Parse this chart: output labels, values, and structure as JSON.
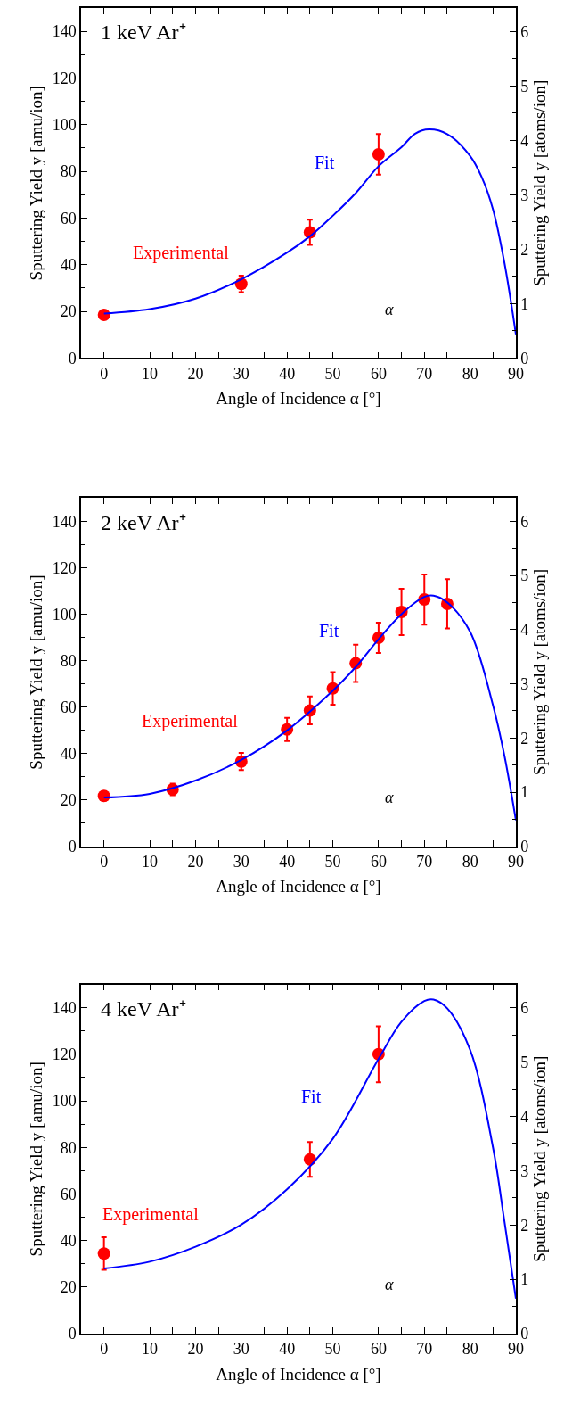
{
  "chart_data": [
    {
      "type": "scatter",
      "title": "1 keV Ar⁺",
      "xlabel": "Angle of Incidence α [°]",
      "ylabel": "Sputtering Yield y [amu/ion]",
      "y2label": "Sputtering Yield y [atoms/ion]",
      "xlim": [
        -5,
        90
      ],
      "xticks": [
        0,
        10,
        20,
        30,
        40,
        50,
        60,
        70,
        80,
        90
      ],
      "ylim": [
        0,
        150
      ],
      "yticks": [
        0,
        20,
        40,
        60,
        80,
        100,
        120,
        140
      ],
      "y2lim": [
        0,
        6.43
      ],
      "y2ticks": [
        0,
        1,
        2,
        3,
        4,
        5,
        6
      ],
      "annotations": [
        "α"
      ],
      "series": [
        {
          "name": "Experimental",
          "type": "scatter",
          "color": "#ff0000",
          "marker": "circle",
          "x": [
            0,
            30,
            45,
            60
          ],
          "values": [
            18.5,
            31.8,
            53.9,
            87.3
          ],
          "errors": [
            null,
            3.5,
            5.4,
            8.7
          ]
        },
        {
          "name": "Fit",
          "type": "line",
          "color": "#0000ff",
          "marker": "none",
          "line_style": "solid",
          "x": [
            0,
            10,
            20,
            30,
            40,
            45,
            50,
            55,
            60,
            65,
            68,
            71,
            75,
            80,
            82.5,
            85,
            87.5,
            90
          ],
          "values": [
            19.1,
            21,
            25.5,
            33.8,
            45.2,
            52.2,
            61,
            70.7,
            82.2,
            90.4,
            96.2,
            98,
            96,
            86.6,
            77.7,
            63.7,
            40.8,
            10.2
          ]
        }
      ]
    },
    {
      "type": "scatter",
      "title": "2 keV Ar⁺",
      "xlabel": "Angle of Incidence α [°]",
      "ylabel": "Sputtering Yield y [amu/ion]",
      "y2label": "Sputtering Yield y [atoms/ion]",
      "xlim": [
        -5,
        90
      ],
      "xticks": [
        0,
        10,
        20,
        30,
        40,
        50,
        60,
        70,
        80,
        90
      ],
      "ylim": [
        0,
        150
      ],
      "yticks": [
        0,
        20,
        40,
        60,
        80,
        100,
        120,
        140
      ],
      "y2lim": [
        0,
        6.43
      ],
      "y2ticks": [
        0,
        1,
        2,
        3,
        4,
        5,
        6
      ],
      "annotations": [
        "α"
      ],
      "series": [
        {
          "name": "Experimental",
          "type": "scatter",
          "color": "#ff0000",
          "marker": "circle",
          "x": [
            0,
            15,
            30,
            40,
            45,
            50,
            55,
            60,
            65,
            70,
            75
          ],
          "values": [
            21.7,
            24.5,
            36.5,
            50.3,
            58.5,
            68,
            78.8,
            89.8,
            100.9,
            106.3,
            104.4
          ],
          "errors": [
            2,
            2.5,
            3.7,
            5,
            6,
            7,
            8,
            6.5,
            10,
            10.8,
            10.6
          ]
        },
        {
          "name": "Fit",
          "type": "line",
          "color": "#0000ff",
          "marker": "none",
          "line_style": "solid",
          "x": [
            0,
            10,
            20,
            30,
            40,
            50,
            55,
            60,
            65,
            70,
            72,
            75,
            80,
            85,
            87.5,
            90
          ],
          "values": [
            21,
            22.6,
            28.3,
            37.2,
            49.9,
            67,
            77.2,
            89.2,
            100,
            107.4,
            107.9,
            105,
            92.4,
            60.7,
            39,
            11.2
          ]
        }
      ]
    },
    {
      "type": "scatter",
      "title": "4 keV Ar⁺",
      "xlabel": "Angle of Incidence α [°]",
      "ylabel": "Sputtering Yield y [amu/ion]",
      "y2label": "Sputtering Yield y [atoms/ion]",
      "xlim": [
        -5,
        90
      ],
      "xticks": [
        0,
        10,
        20,
        30,
        40,
        50,
        60,
        70,
        80,
        90
      ],
      "ylim": [
        0,
        150
      ],
      "yticks": [
        0,
        20,
        40,
        60,
        80,
        100,
        120,
        140
      ],
      "y2lim": [
        0,
        6.43
      ],
      "y2ticks": [
        0,
        1,
        2,
        3,
        4,
        5,
        6
      ],
      "annotations": [
        "α"
      ],
      "series": [
        {
          "name": "Experimental",
          "type": "scatter",
          "color": "#ff0000",
          "marker": "circle",
          "x": [
            0,
            45,
            60
          ],
          "values": [
            34.4,
            74.8,
            120
          ],
          "errors": [
            7,
            7.5,
            12
          ]
        },
        {
          "name": "Fit",
          "type": "line",
          "color": "#0000ff",
          "marker": "none",
          "line_style": "solid",
          "x": [
            0,
            10,
            20,
            30,
            40,
            50,
            60,
            65,
            70,
            72,
            75,
            80,
            85,
            87.5,
            90
          ],
          "values": [
            28,
            30.9,
            37.3,
            46.8,
            62,
            83.7,
            118,
            134,
            142.9,
            143.5,
            139.7,
            121.9,
            79.9,
            48.1,
            15
          ]
        }
      ]
    }
  ]
}
